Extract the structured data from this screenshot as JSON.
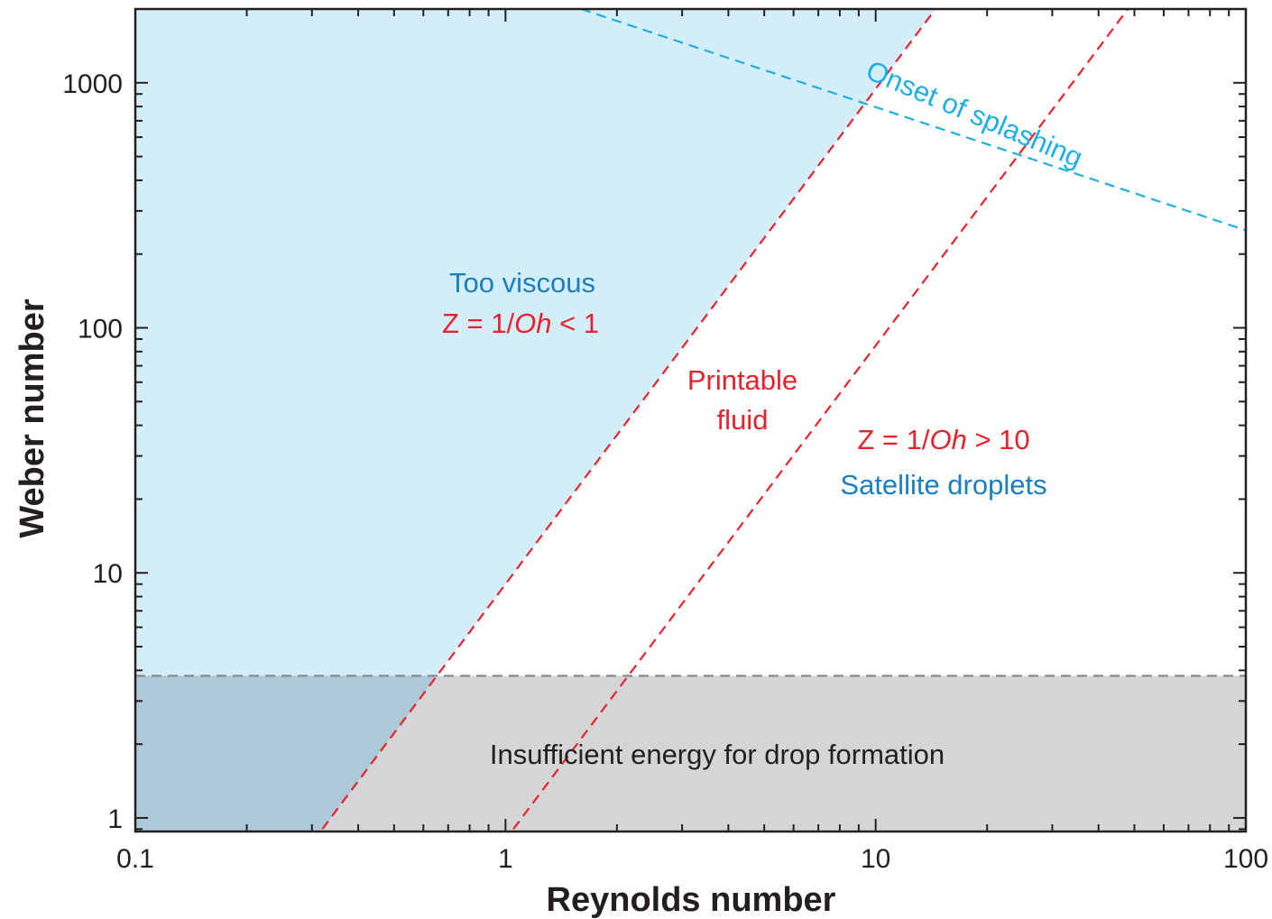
{
  "chart_data": {
    "type": "line",
    "title": "",
    "xlabel": "Reynolds number",
    "ylabel": "Weber number",
    "xscale": "log",
    "yscale": "log",
    "xlim": [
      0.1,
      100
    ],
    "ylim": [
      0.88,
      2000
    ],
    "x_ticks": [
      {
        "value": 0.1,
        "label": "0.1"
      },
      {
        "value": 1,
        "label": "1"
      },
      {
        "value": 10,
        "label": "10"
      },
      {
        "value": 100,
        "label": "100"
      }
    ],
    "y_ticks": [
      {
        "value": 1,
        "label": "1"
      },
      {
        "value": 10,
        "label": "10"
      },
      {
        "value": 100,
        "label": "100"
      },
      {
        "value": 1000,
        "label": "1000"
      }
    ],
    "grid": false,
    "series": [
      {
        "color": "#e8222d",
        "style": "dashed",
        "x": [
          0.32,
          14.5
        ],
        "y": [
          0.9,
          2000
        ]
      },
      {
        "color": "#e8222d",
        "style": "dashed",
        "x": [
          1.05,
          48
        ],
        "y": [
          0.9,
          2000
        ]
      },
      {
        "color": "#1eaee8",
        "style": "dashed",
        "x": [
          1.6,
          100
        ],
        "y": [
          2000,
          250
        ]
      },
      {
        "color": "#8a8a8a",
        "style": "dashed",
        "x": [
          0.1,
          100
        ],
        "y": [
          3.8,
          3.8
        ]
      }
    ],
    "regions": [
      {
        "key": "too_viscous",
        "color": "#d4eef9"
      },
      {
        "key": "insufficient_energy",
        "color": "#d4d5d7"
      },
      {
        "key": "overlap",
        "color": "#abc9d6"
      }
    ],
    "annotations": {
      "too_viscous": "Too viscous",
      "z_low_prefix": "Z = 1/",
      "z_low_oh": "Oh",
      "z_low_suffix": " < 1",
      "printable_1": "Printable",
      "printable_2": "fluid",
      "z_high_prefix": "Z = 1/",
      "z_high_oh": "Oh",
      "z_high_suffix": " > 10",
      "satellite": "Satellite droplets",
      "splashing": "Onset of splashing",
      "insufficient": "Insufficient energy for drop formation"
    }
  },
  "colors": {
    "axis": "#231f20",
    "viscous_fill": "#d4eef9",
    "energy_fill": "#d4d5d7",
    "overlap_fill": "#abc9d6",
    "red_line": "#e8222d",
    "cyan_line": "#1eaee8",
    "gray_line": "#8a8a8a"
  }
}
